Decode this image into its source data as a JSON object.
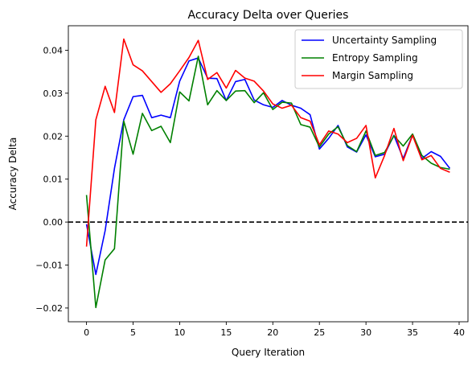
{
  "chart_data": {
    "type": "line",
    "title": "Accuracy Delta over Queries",
    "xlabel": "Query Iteration",
    "ylabel": "Accuracy Delta",
    "xlim": [
      -1.95,
      40.95
    ],
    "ylim": [
      -0.0232,
      0.0457
    ],
    "xticks": [
      0,
      5,
      10,
      15,
      20,
      25,
      30,
      35,
      40
    ],
    "xtick_labels": [
      "0",
      "5",
      "10",
      "15",
      "20",
      "25",
      "30",
      "35",
      "40"
    ],
    "yticks": [
      -0.02,
      -0.01,
      0.0,
      0.01,
      0.02,
      0.03,
      0.04
    ],
    "ytick_labels": [
      "−0.02",
      "−0.01",
      "0.00",
      "0.01",
      "0.02",
      "0.03",
      "0.04"
    ],
    "grid": false,
    "legend_position": "top-right",
    "reference_line": {
      "y": 0,
      "style": "dashed",
      "color": "#000000"
    },
    "x": [
      0,
      1,
      2,
      3,
      4,
      5,
      6,
      7,
      8,
      9,
      10,
      11,
      12,
      13,
      14,
      15,
      16,
      17,
      18,
      19,
      20,
      21,
      22,
      23,
      24,
      25,
      26,
      27,
      28,
      29,
      30,
      31,
      32,
      33,
      34,
      35,
      36,
      37,
      38,
      39
    ],
    "series": [
      {
        "name": "Uncertainty Sampling",
        "color": "#0000ff",
        "values": [
          -0.0005,
          -0.0122,
          -0.002,
          0.0125,
          0.0238,
          0.0292,
          0.0295,
          0.0243,
          0.0249,
          0.0243,
          0.0328,
          0.0375,
          0.0382,
          0.0335,
          0.0334,
          0.0283,
          0.0327,
          0.0332,
          0.0284,
          0.0273,
          0.0267,
          0.0283,
          0.0272,
          0.0265,
          0.025,
          0.017,
          0.0195,
          0.0225,
          0.0175,
          0.0163,
          0.0203,
          0.0152,
          0.0158,
          0.0202,
          0.0148,
          0.0203,
          0.0148,
          0.0164,
          0.0153,
          0.0125
        ]
      },
      {
        "name": "Entropy Sampling",
        "color": "#008000",
        "values": [
          0.0063,
          -0.0199,
          -0.0088,
          -0.0062,
          0.0235,
          0.0158,
          0.0253,
          0.0213,
          0.0223,
          0.0185,
          0.0303,
          0.0282,
          0.0386,
          0.0273,
          0.0306,
          0.0283,
          0.0305,
          0.0306,
          0.0278,
          0.0301,
          0.0262,
          0.0279,
          0.0277,
          0.0227,
          0.0221,
          0.0175,
          0.0205,
          0.0222,
          0.0178,
          0.0164,
          0.0212,
          0.0155,
          0.0162,
          0.0201,
          0.0177,
          0.0205,
          0.0155,
          0.0137,
          0.0127,
          0.0123
        ]
      },
      {
        "name": "Margin Sampling",
        "color": "#ff0000",
        "values": [
          -0.0057,
          0.0238,
          0.0316,
          0.0255,
          0.0426,
          0.0366,
          0.0352,
          0.0327,
          0.0302,
          0.0322,
          0.0352,
          0.0383,
          0.0423,
          0.0332,
          0.0348,
          0.0312,
          0.0353,
          0.0335,
          0.0328,
          0.0305,
          0.0275,
          0.0265,
          0.0272,
          0.0243,
          0.0235,
          0.018,
          0.0212,
          0.0205,
          0.0185,
          0.0195,
          0.0225,
          0.0103,
          0.0155,
          0.0218,
          0.0143,
          0.0202,
          0.0145,
          0.0155,
          0.0125,
          0.0116
        ]
      }
    ]
  }
}
